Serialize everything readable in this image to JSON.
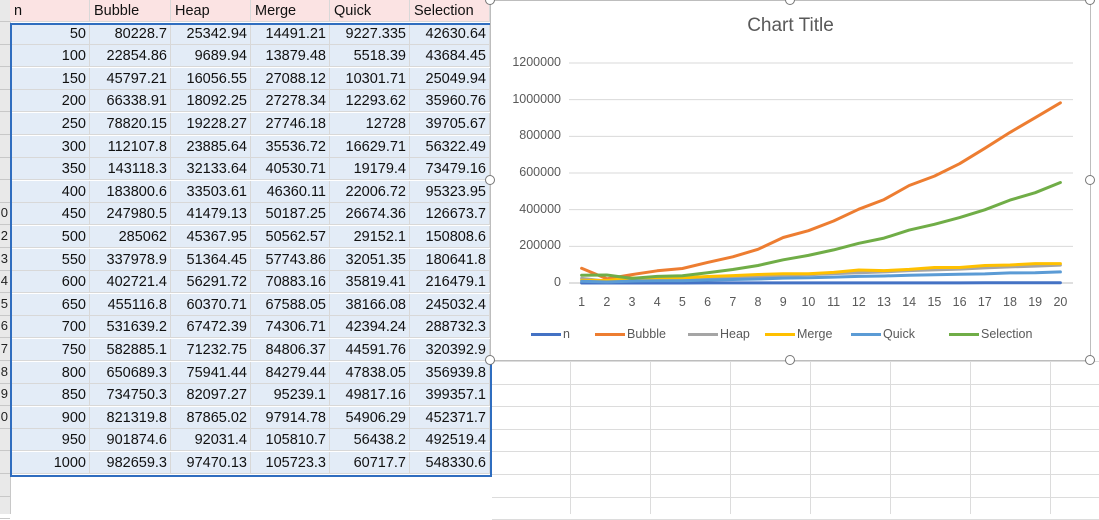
{
  "sheet": {
    "columns": [
      "n",
      "Bubble",
      "Heap",
      "Merge",
      "Quick",
      "Selection"
    ],
    "rows": [
      [
        "50",
        "80228.7",
        "25342.94",
        "14491.21",
        "9227.335",
        "42630.64"
      ],
      [
        "100",
        "22854.86",
        "9689.94",
        "13879.48",
        "5518.39",
        "43684.45"
      ],
      [
        "150",
        "45797.21",
        "16056.55",
        "27088.12",
        "10301.71",
        "25049.94"
      ],
      [
        "200",
        "66338.91",
        "18092.25",
        "27278.34",
        "12293.62",
        "35960.76"
      ],
      [
        "250",
        "78820.15",
        "19228.27",
        "27746.18",
        "12728",
        "39705.67"
      ],
      [
        "300",
        "112107.8",
        "23885.64",
        "35536.72",
        "16629.71",
        "56322.49"
      ],
      [
        "350",
        "143118.3",
        "32133.64",
        "40530.71",
        "19179.4",
        "73479.16"
      ],
      [
        "400",
        "183800.6",
        "33503.61",
        "46360.11",
        "22006.72",
        "95323.95"
      ],
      [
        "450",
        "247980.5",
        "41479.13",
        "50187.25",
        "26674.36",
        "126673.7"
      ],
      [
        "500",
        "285062",
        "45367.95",
        "50562.57",
        "29152.1",
        "150808.6"
      ],
      [
        "550",
        "337978.9",
        "51364.45",
        "57743.86",
        "32051.35",
        "180641.8"
      ],
      [
        "600",
        "402721.4",
        "56291.72",
        "70883.16",
        "35819.41",
        "216479.1"
      ],
      [
        "650",
        "455116.8",
        "60370.71",
        "67588.05",
        "38166.08",
        "245032.4"
      ],
      [
        "700",
        "531639.2",
        "67472.39",
        "74306.71",
        "42394.24",
        "288732.3"
      ],
      [
        "750",
        "582885.1",
        "71232.75",
        "84806.37",
        "44591.76",
        "320392.9"
      ],
      [
        "800",
        "650689.3",
        "75941.44",
        "84279.44",
        "47838.05",
        "356939.8"
      ],
      [
        "850",
        "734750.3",
        "82097.27",
        "95239.1",
        "49817.16",
        "399357.1"
      ],
      [
        "900",
        "821319.8",
        "87865.02",
        "97914.78",
        "54906.29",
        "452371.7"
      ],
      [
        "950",
        "901874.6",
        "92031.4",
        "105810.7",
        "56438.2",
        "492519.4"
      ],
      [
        "1000",
        "982659.3",
        "97470.13",
        "105723.3",
        "60717.7",
        "548330.6"
      ]
    ],
    "row_numbers": [
      "0",
      "2",
      "3",
      "4",
      "5",
      "6",
      "7",
      "8",
      "9",
      "0"
    ]
  },
  "chart_data": {
    "type": "line",
    "title": "Chart Title",
    "x": [
      1,
      2,
      3,
      4,
      5,
      6,
      7,
      8,
      9,
      10,
      11,
      12,
      13,
      14,
      15,
      16,
      17,
      18,
      19,
      20
    ],
    "y_ticks": [
      "1200000",
      "1000000",
      "800000",
      "600000",
      "400000",
      "200000",
      "0"
    ],
    "ylim": [
      0,
      1200000
    ],
    "grid": true,
    "legend_position": "bottom",
    "series": [
      {
        "name": "n",
        "color": "#4472c4",
        "values": [
          50,
          100,
          150,
          200,
          250,
          300,
          350,
          400,
          450,
          500,
          550,
          600,
          650,
          700,
          750,
          800,
          850,
          900,
          950,
          1000
        ]
      },
      {
        "name": "Bubble",
        "color": "#ed7d31",
        "values": [
          80228.7,
          22854.86,
          45797.21,
          66338.91,
          78820.15,
          112107.8,
          143118.3,
          183800.6,
          247980.5,
          285062,
          337978.9,
          402721.4,
          455116.8,
          531639.2,
          582885.1,
          650689.3,
          734750.3,
          821319.8,
          901874.6,
          982659.3
        ]
      },
      {
        "name": "Heap",
        "color": "#a5a5a5",
        "values": [
          25342.94,
          9689.94,
          16056.55,
          18092.25,
          19228.27,
          23885.64,
          32133.64,
          33503.61,
          41479.13,
          45367.95,
          51364.45,
          56291.72,
          60370.71,
          67472.39,
          71232.75,
          75941.44,
          82097.27,
          87865.02,
          92031.4,
          97470.13
        ]
      },
      {
        "name": "Merge",
        "color": "#ffc000",
        "values": [
          14491.21,
          13879.48,
          27088.12,
          27278.34,
          27746.18,
          35536.72,
          40530.71,
          46360.11,
          50187.25,
          50562.57,
          57743.86,
          70883.16,
          67588.05,
          74306.71,
          84806.37,
          84279.44,
          95239.1,
          97914.78,
          105810.7,
          105723.3
        ]
      },
      {
        "name": "Quick",
        "color": "#5b9bd5",
        "values": [
          9227.335,
          5518.39,
          10301.71,
          12293.62,
          12728,
          16629.71,
          19179.4,
          22006.72,
          26674.36,
          29152.1,
          32051.35,
          35819.41,
          38166.08,
          42394.24,
          44591.76,
          47838.05,
          49817.16,
          54906.29,
          56438.2,
          60717.7
        ]
      },
      {
        "name": "Selection",
        "color": "#70ad47",
        "values": [
          42630.64,
          43684.45,
          25049.94,
          35960.76,
          39705.67,
          56322.49,
          73479.16,
          95323.95,
          126673.7,
          150808.6,
          180641.8,
          216479.1,
          245032.4,
          288732.3,
          320392.9,
          356939.8,
          399357.1,
          452371.7,
          492519.4,
          548330.6
        ]
      }
    ]
  }
}
